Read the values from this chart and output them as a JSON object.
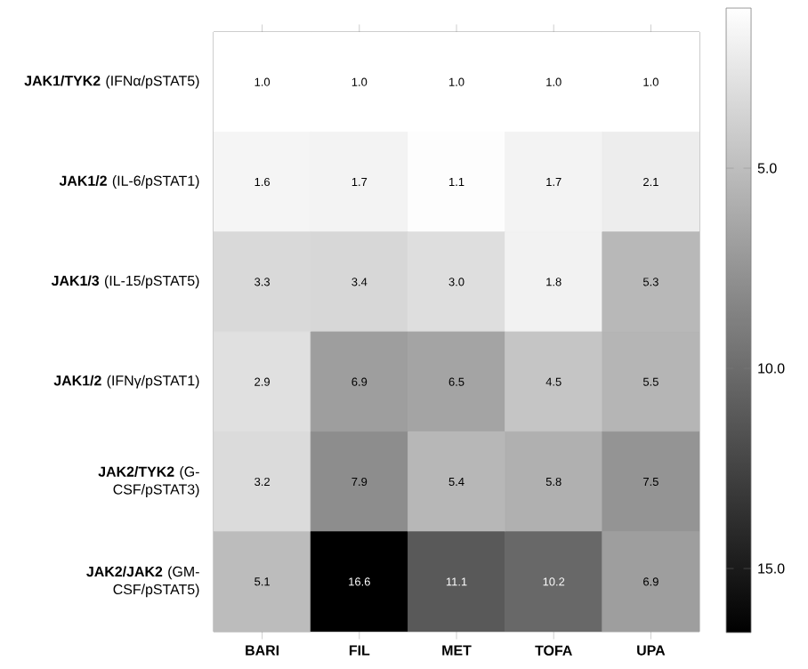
{
  "chart_data": {
    "type": "heatmap",
    "categories": [
      "BARI",
      "FIL",
      "MET",
      "TOFA",
      "UPA"
    ],
    "y_categories": [
      "**JAK1/TYK2** (IFNα/pSTAT5)",
      "**JAK1/2** (IL-6/pSTAT1)",
      "**JAK1/3** (IL-15/pSTAT5)",
      "**JAK1/2** (IFNγ/pSTAT1)",
      "**JAK2/TYK2** (G-CSF/pSTAT3)",
      "**JAK2/JAK2** (GM-CSF/pSTAT5)"
    ],
    "cells": [
      [
        1.0,
        1.0,
        1.0,
        1.0,
        1.0
      ],
      [
        1.6,
        1.7,
        1.1,
        1.7,
        2.1
      ],
      [
        3.3,
        3.4,
        3.0,
        1.8,
        5.3
      ],
      [
        2.9,
        6.9,
        6.5,
        4.5,
        5.5
      ],
      [
        3.2,
        7.9,
        5.4,
        5.8,
        7.5
      ],
      [
        5.1,
        16.6,
        11.1,
        10.2,
        6.9
      ]
    ],
    "cell_labels": [
      [
        "1.0",
        "1.0",
        "1.0",
        "1.0",
        "1.0"
      ],
      [
        "1.6",
        "1.7",
        "1.1",
        "1.7",
        "2.1"
      ],
      [
        "3.3",
        "3.4",
        "3.0",
        "1.8",
        "5.3"
      ],
      [
        "2.9",
        "6.9",
        "6.5",
        "4.5",
        "5.5"
      ],
      [
        "3.2",
        "7.9",
        "5.4",
        "5.8",
        "7.5"
      ],
      [
        "5.1",
        "16.6",
        "11.1",
        "10.2",
        "6.9"
      ]
    ],
    "clim": [
      1.0,
      16.6
    ],
    "cticks": [
      {
        "value": 5,
        "label": "5.0"
      },
      {
        "value": 10,
        "label": "10.0"
      },
      {
        "value": 15,
        "label": "15.0"
      }
    ]
  }
}
